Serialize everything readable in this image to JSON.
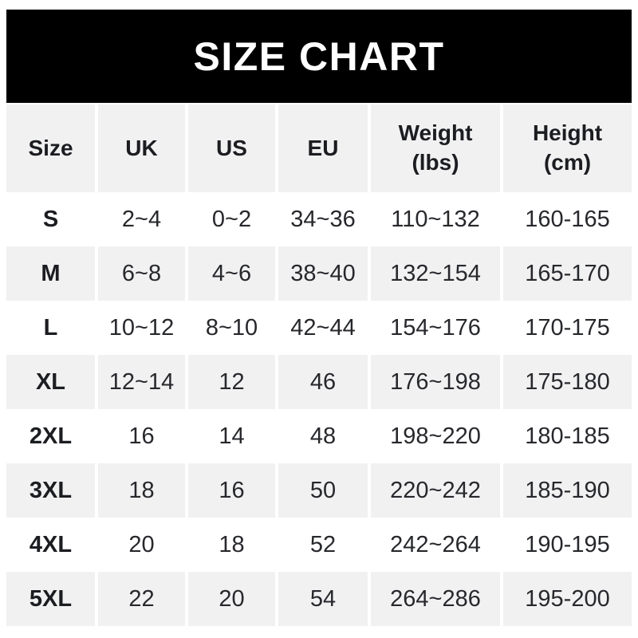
{
  "banner": {
    "title": "SIZE CHART"
  },
  "colors": {
    "banner_bg": "#000000",
    "banner_text": "#ffffff",
    "alt_row_bg": "#f1f1f2",
    "row_bg": "#ffffff",
    "text": "#27282c",
    "bold_text": "#1c1d21"
  },
  "chart_data": {
    "type": "table",
    "title": "SIZE CHART",
    "columns": [
      "Size",
      "UK",
      "US",
      "EU",
      "Weight (lbs)",
      "Height (cm)"
    ],
    "header": {
      "size": "Size",
      "uk": "UK",
      "us": "US",
      "eu": "EU",
      "weight_line1": "Weight",
      "weight_line2": "(lbs)",
      "height_line1": "Height",
      "height_line2": "(cm)"
    },
    "rows": [
      [
        "S",
        "2~4",
        "0~2",
        "34~36",
        "110~132",
        "160-165"
      ],
      [
        "M",
        "6~8",
        "4~6",
        "38~40",
        "132~154",
        "165-170"
      ],
      [
        "L",
        "10~12",
        "8~10",
        "42~44",
        "154~176",
        "170-175"
      ],
      [
        "XL",
        "12~14",
        "12",
        "46",
        "176~198",
        "175-180"
      ],
      [
        "2XL",
        "16",
        "14",
        "48",
        "198~220",
        "180-185"
      ],
      [
        "3XL",
        "18",
        "16",
        "50",
        "220~242",
        "185-190"
      ],
      [
        "4XL",
        "20",
        "18",
        "52",
        "242~264",
        "190-195"
      ],
      [
        "5XL",
        "22",
        "20",
        "54",
        "264~286",
        "195-200"
      ]
    ]
  }
}
